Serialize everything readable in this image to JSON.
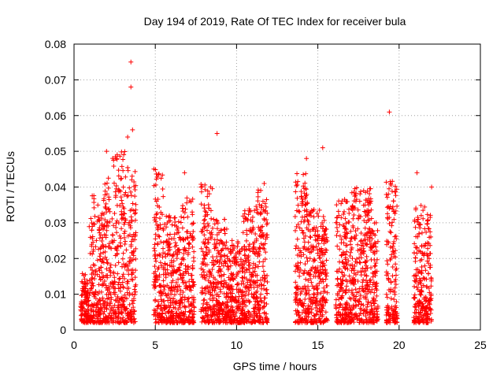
{
  "chart_data": {
    "type": "scatter",
    "title": "Day 194 of 2019, Rate Of TEC Index for receiver bula",
    "xlabel": "GPS time / hours",
    "ylabel": "ROTI / TECUs",
    "xlim": [
      0,
      25
    ],
    "ylim": [
      0,
      0.08
    ],
    "xticks": [
      "0",
      "5",
      "10",
      "15",
      "20",
      "25"
    ],
    "yticks": [
      "0",
      "0.01",
      "0.02",
      "0.03",
      "0.04",
      "0.05",
      "0.06",
      "0.07",
      "0.08"
    ],
    "grid": true,
    "marker": "plus",
    "color": "#ff0000",
    "clusters": [
      {
        "x": [
          0.4,
          0.9
        ],
        "ymax": 0.016
      },
      {
        "x": [
          0.9,
          1.8
        ],
        "ymax": 0.038
      },
      {
        "x": [
          1.8,
          2.3
        ],
        "ymax": 0.044
      },
      {
        "x": [
          2.3,
          3.3
        ],
        "ymax": 0.05
      },
      {
        "x": [
          3.3,
          3.8
        ],
        "ymax": 0.048
      },
      {
        "x": [
          4.9,
          5.5
        ],
        "ymax": 0.046
      },
      {
        "x": [
          5.5,
          6.5
        ],
        "ymax": 0.032
      },
      {
        "x": [
          6.5,
          7.4
        ],
        "ymax": 0.037
      },
      {
        "x": [
          7.8,
          8.6
        ],
        "ymax": 0.041
      },
      {
        "x": [
          8.6,
          9.4
        ],
        "ymax": 0.032
      },
      {
        "x": [
          9.4,
          10.4
        ],
        "ymax": 0.026
      },
      {
        "x": [
          10.4,
          11.3
        ],
        "ymax": 0.035
      },
      {
        "x": [
          11.3,
          11.9
        ],
        "ymax": 0.04
      },
      {
        "x": [
          13.6,
          14.4
        ],
        "ymax": 0.044
      },
      {
        "x": [
          14.4,
          15.2
        ],
        "ymax": 0.034
      },
      {
        "x": [
          15.2,
          15.6
        ],
        "ymax": 0.032
      },
      {
        "x": [
          16.1,
          17.0
        ],
        "ymax": 0.037
      },
      {
        "x": [
          17.0,
          18.3
        ],
        "ymax": 0.04
      },
      {
        "x": [
          18.3,
          18.7
        ],
        "ymax": 0.032
      },
      {
        "x": [
          19.2,
          19.9
        ],
        "ymax": 0.042
      },
      {
        "x": [
          20.9,
          21.3
        ],
        "ymax": 0.035
      },
      {
        "x": [
          21.3,
          22.0
        ],
        "ymax": 0.035
      }
    ],
    "outliers": [
      {
        "x": 3.5,
        "y": 0.075
      },
      {
        "x": 3.5,
        "y": 0.068
      },
      {
        "x": 3.6,
        "y": 0.056
      },
      {
        "x": 3.3,
        "y": 0.054
      },
      {
        "x": 2.0,
        "y": 0.05
      },
      {
        "x": 8.8,
        "y": 0.055
      },
      {
        "x": 19.4,
        "y": 0.061
      },
      {
        "x": 15.3,
        "y": 0.051
      },
      {
        "x": 14.3,
        "y": 0.048
      },
      {
        "x": 21.1,
        "y": 0.044
      },
      {
        "x": 6.8,
        "y": 0.044
      },
      {
        "x": 22.0,
        "y": 0.04
      },
      {
        "x": 11.7,
        "y": 0.041
      }
    ]
  }
}
